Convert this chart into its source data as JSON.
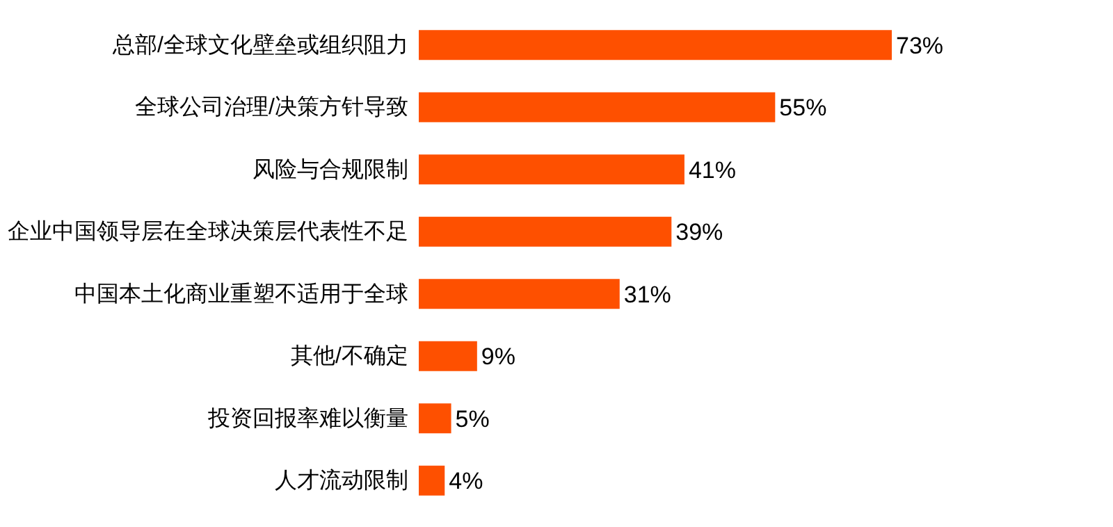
{
  "chart_data": {
    "type": "bar",
    "orientation": "horizontal",
    "categories": [
      "总部/全球文化壁垒或组织阻力",
      "全球公司治理/决策方针导致",
      "风险与合规限制",
      "企业中国领导层在全球决策层代表性不足",
      "中国本土化商业重塑不适用于全球",
      "其他/不确定",
      "投资回报率难以衡量",
      "人才流动限制"
    ],
    "values": [
      73,
      55,
      41,
      39,
      31,
      9,
      5,
      4
    ],
    "value_labels": [
      "73%",
      "55%",
      "41%",
      "39%",
      "31%",
      "9%",
      "5%",
      "4%"
    ],
    "color": "#fe5000"
  }
}
